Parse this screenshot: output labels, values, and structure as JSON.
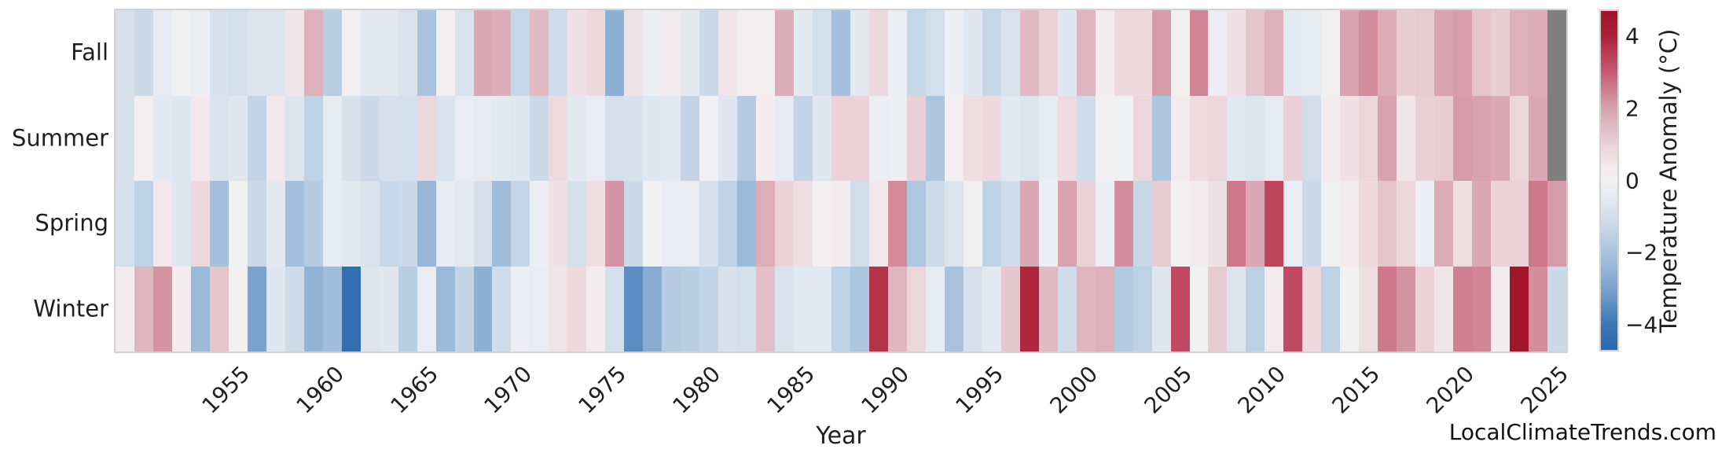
{
  "watermark": "LocalClimateTrends.com",
  "chart_data": {
    "type": "heatmap",
    "title": "",
    "xlabel": "Year",
    "legend_position": "right-colorbar",
    "grid": false,
    "years": [
      1949,
      1950,
      1951,
      1952,
      1953,
      1954,
      1955,
      1956,
      1957,
      1958,
      1959,
      1960,
      1961,
      1962,
      1963,
      1964,
      1965,
      1966,
      1967,
      1968,
      1969,
      1970,
      1971,
      1972,
      1973,
      1974,
      1975,
      1976,
      1977,
      1978,
      1979,
      1980,
      1981,
      1982,
      1983,
      1984,
      1985,
      1986,
      1987,
      1988,
      1989,
      1990,
      1991,
      1992,
      1993,
      1994,
      1995,
      1996,
      1997,
      1998,
      1999,
      2000,
      2001,
      2002,
      2003,
      2004,
      2005,
      2006,
      2007,
      2008,
      2009,
      2010,
      2011,
      2012,
      2013,
      2014,
      2015,
      2016,
      2017,
      2018,
      2019,
      2020,
      2021,
      2022,
      2023,
      2024,
      2025
    ],
    "x_ticks": [
      1955,
      1960,
      1965,
      1970,
      1975,
      1980,
      1985,
      1990,
      1995,
      2000,
      2005,
      2010,
      2015,
      2020,
      2025
    ],
    "series": [
      {
        "name": "Fall",
        "values": [
          -0.9,
          -1.2,
          -0.4,
          0,
          -0.2,
          -0.9,
          -1,
          -0.7,
          -0.7,
          0.5,
          1.7,
          -1.6,
          0.1,
          -0.5,
          -0.5,
          -0.8,
          -2,
          0.2,
          -0.8,
          1.9,
          1.8,
          -1.3,
          1.5,
          -1.1,
          0.6,
          0.8,
          -2.6,
          0.55,
          -0.15,
          0.3,
          -0.5,
          -1.2,
          0.5,
          0.2,
          0.1,
          1.8,
          -0.5,
          -1,
          -2.1,
          -0.5,
          0.85,
          -0.2,
          -1.3,
          -1,
          -0.15,
          -0.6,
          -1.3,
          -0.8,
          1.5,
          1,
          -0.6,
          1.6,
          0.3,
          0.8,
          0.8,
          2.1,
          0.05,
          2.4,
          -0.2,
          0.6,
          1.3,
          1.7,
          -0.45,
          -0.4,
          0.1,
          2,
          2.3,
          1.8,
          1.1,
          1.15,
          2,
          2.05,
          1.3,
          1.1,
          1.7,
          1.8,
          null
        ]
      },
      {
        "name": "Summer",
        "values": [
          -0.9,
          0.2,
          -0.5,
          -0.6,
          0.4,
          -0.8,
          -0.6,
          -1.4,
          0.4,
          -0.7,
          -1.5,
          -0.4,
          -0.9,
          -1.2,
          -0.95,
          -1,
          0.9,
          -0.8,
          -0.3,
          -0.4,
          -0.5,
          -0.6,
          -1.2,
          0.75,
          -0.5,
          -0.3,
          -1,
          -0.9,
          -0.6,
          -0.5,
          -1.4,
          -0.05,
          -0.6,
          -1.7,
          0.25,
          -0.4,
          -1.4,
          -0.6,
          1,
          1,
          -0.2,
          -0.15,
          1.05,
          -1.9,
          0.15,
          0.7,
          0.8,
          -0.5,
          -0.7,
          -0.35,
          0.75,
          -1.1,
          0.1,
          -0.1,
          0.9,
          -1.9,
          0.3,
          0.75,
          0.9,
          -0.55,
          -0.7,
          -0.4,
          1.05,
          -1.05,
          0.3,
          0.6,
          0.9,
          2,
          0.5,
          1.05,
          1.1,
          2.1,
          2,
          1.9,
          0.9,
          1.9,
          null
        ]
      },
      {
        "name": "Spring",
        "values": [
          -1,
          -1.5,
          0.4,
          -0.6,
          0.85,
          -2.1,
          -0.1,
          -1.2,
          -0.5,
          -2.1,
          -1.7,
          -0.4,
          -0.5,
          -0.8,
          -1.3,
          -1.2,
          -2.4,
          -0.35,
          -0.45,
          -0.95,
          -2.2,
          -1.35,
          -0.25,
          0.6,
          -1,
          0.65,
          2.2,
          -1.2,
          -0.05,
          -0.3,
          -0.3,
          -0.9,
          -1.45,
          -2.3,
          1.75,
          1,
          0.65,
          0.1,
          0.25,
          -1.05,
          0.4,
          2.35,
          -1.85,
          -1.15,
          -0.7,
          0,
          -1.45,
          -1.1,
          1.85,
          -0.25,
          2,
          1,
          -0.2,
          2.3,
          -1.3,
          1.1,
          0.05,
          0.3,
          0.6,
          2.6,
          1.9,
          3.4,
          -0.3,
          -1.2,
          -0.1,
          0.3,
          0.8,
          1.3,
          0.9,
          -0.2,
          1.8,
          0.7,
          1.9,
          1,
          1,
          2.6,
          2.1
        ]
      },
      {
        "name": "Winter",
        "values": [
          0.3,
          1.6,
          2.2,
          0.3,
          -2.3,
          1.3,
          0.2,
          -3,
          -0.65,
          -1.15,
          -2.5,
          -2.2,
          -4.4,
          -0.7,
          -0.6,
          -1.6,
          -0.3,
          -2.3,
          -1.4,
          -2.6,
          -1.1,
          -0.2,
          -0.3,
          0.5,
          0.8,
          0.3,
          -1,
          -3.5,
          -2.7,
          -1.7,
          -1.6,
          -1.4,
          -0.9,
          -1,
          1.4,
          -0.8,
          -0.5,
          -0.55,
          -1.5,
          -1.9,
          3.7,
          1.6,
          0.9,
          -0.35,
          -2,
          -0.95,
          -0.5,
          1.25,
          3.9,
          1.5,
          -1.1,
          1.6,
          1.7,
          -1.8,
          -1.5,
          -0.6,
          3.3,
          0,
          1.15,
          -0.7,
          -1.55,
          0.35,
          3.3,
          0.85,
          -1.5,
          0,
          0.7,
          2.6,
          2.2,
          1,
          0.5,
          2.5,
          2.4,
          0.3,
          4.6,
          2.3,
          -1.2
        ]
      }
    ],
    "colorbar": {
      "label": "Temperature Anomaly (°C)",
      "tick_labels": [
        "4",
        "2",
        "0",
        "−2",
        "−4"
      ],
      "tick_values": [
        4,
        2,
        0,
        -2,
        -4
      ],
      "vmin": -4.7,
      "vmax": 4.7
    },
    "colors": {
      "missing_cell": "#7f7f7f",
      "negative_extreme": "#2c68ae",
      "zero": "#f2f1f2",
      "positive_extreme": "#a01328",
      "frame": "#d2d2d2",
      "text": "#1f1f1f"
    }
  }
}
